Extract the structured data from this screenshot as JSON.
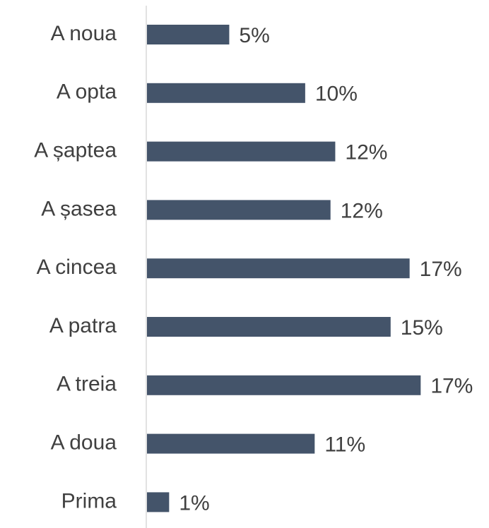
{
  "chart_data": {
    "type": "bar",
    "orientation": "horizontal",
    "categories": [
      "A noua",
      "A opta",
      "A șaptea",
      "A șasea",
      "A cincea",
      "A patra",
      "A treia",
      "A doua",
      "Prima"
    ],
    "values": [
      5.2,
      10.0,
      11.9,
      11.6,
      16.6,
      15.4,
      17.3,
      10.6,
      1.4
    ],
    "value_labels": [
      "5%",
      "10%",
      "12%",
      "12%",
      "17%",
      "15%",
      "17%",
      "11%",
      "1%"
    ],
    "color": "#44546a",
    "xlim": [
      0,
      18
    ]
  }
}
